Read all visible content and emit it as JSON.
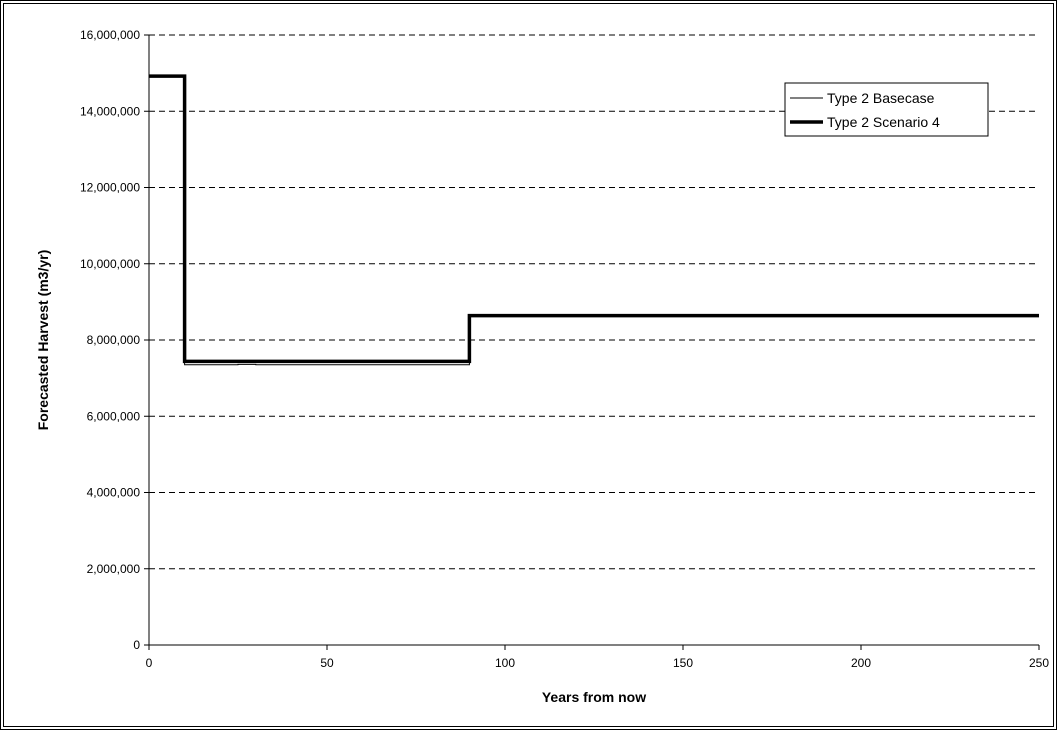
{
  "chart_data": {
    "type": "line",
    "title": "",
    "xlabel": "Years from now",
    "ylabel": "Forecasted Harvest (m3/yr)",
    "xlim": [
      0,
      250
    ],
    "ylim": [
      0,
      16000000
    ],
    "x_ticks": [
      0,
      50,
      100,
      150,
      200,
      250
    ],
    "x_tick_labels": [
      "0",
      "50",
      "100",
      "150",
      "200",
      "250"
    ],
    "y_ticks": [
      0,
      2000000,
      4000000,
      6000000,
      8000000,
      10000000,
      12000000,
      14000000,
      16000000
    ],
    "y_tick_labels": [
      "0",
      "2,000,000",
      "4,000,000",
      "6,000,000",
      "8,000,000",
      "10,000,000",
      "12,000,000",
      "14,000,000",
      "16,000,000"
    ],
    "grid": "horizontal dashed",
    "legend_position": "top-right",
    "line_style": "step",
    "series": [
      {
        "name": "Type 2 Basecase",
        "color": "#000000",
        "weight": "thin",
        "x": [
          0,
          10,
          25,
          30,
          90,
          100,
          105,
          250
        ],
        "y": [
          14900000,
          7350000,
          7360000,
          7350000,
          8620000,
          8630000,
          8620000,
          8620000
        ]
      },
      {
        "name": "Type 2 Scenario 4",
        "color": "#000000",
        "weight": "thick",
        "x": [
          0,
          10,
          90,
          250
        ],
        "y": [
          14920000,
          7440000,
          8640000,
          8640000
        ]
      }
    ]
  }
}
